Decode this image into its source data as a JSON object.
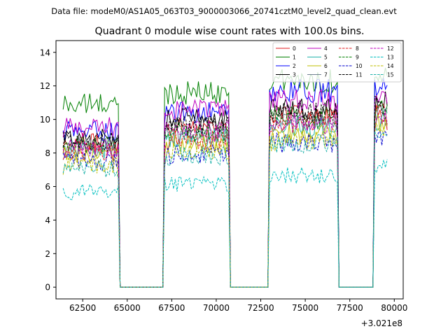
{
  "suptitle": "Data file: modeM0/AS1A05_063T03_9000003066_20741cztM0_level2_quad_clean.evt",
  "chart_data": {
    "type": "line",
    "title": "Quadrant 0 module wise count rates with 100.0s bins.",
    "xlabel": "",
    "ylabel": "",
    "offset_text": "+3.021e8",
    "xlim": [
      61000,
      80500
    ],
    "ylim": [
      -0.7,
      14.7
    ],
    "xticks": [
      62500,
      65000,
      67500,
      70000,
      72500,
      75000,
      77500,
      80000
    ],
    "xtick_labels": [
      "62500",
      "65000",
      "67500",
      "70000",
      "72500",
      "75000",
      "77500",
      "80000"
    ],
    "yticks": [
      0,
      2,
      4,
      6,
      8,
      10,
      12,
      14
    ],
    "ytick_labels": [
      "0",
      "2",
      "4",
      "6",
      "8",
      "10",
      "12",
      "14"
    ],
    "segments": [
      {
        "start": 61400,
        "end": 64500,
        "zero_until": 67100
      },
      {
        "start": 67100,
        "end": 70700,
        "zero_until": 73000
      },
      {
        "start": 73000,
        "end": 76800,
        "zero_until": 78900
      },
      {
        "start": 78900,
        "end": 79600,
        "zero_until": null
      }
    ],
    "series": [
      {
        "name": "0",
        "color": "#e31a1c",
        "dashed": false,
        "levels": [
          8.6,
          9.6,
          10.3,
          10.4
        ]
      },
      {
        "name": "1",
        "color": "#008000",
        "dashed": false,
        "levels": [
          10.9,
          11.6,
          12.3,
          12.6
        ]
      },
      {
        "name": "2",
        "color": "#0000ff",
        "dashed": false,
        "levels": [
          9.3,
          10.4,
          11.7,
          12.0
        ]
      },
      {
        "name": "3",
        "color": "#000000",
        "dashed": false,
        "levels": [
          8.9,
          10.1,
          10.6,
          11.1
        ]
      },
      {
        "name": "4",
        "color": "#bf00bf",
        "dashed": false,
        "levels": [
          9.5,
          10.6,
          11.1,
          11.6
        ]
      },
      {
        "name": "5",
        "color": "#20b2aa",
        "dashed": false,
        "levels": [
          8.2,
          8.9,
          9.6,
          10.0
        ]
      },
      {
        "name": "6",
        "color": "#bfbf00",
        "dashed": false,
        "levels": [
          7.9,
          8.5,
          9.1,
          9.7
        ]
      },
      {
        "name": "7",
        "color": "#708090",
        "dashed": false,
        "levels": [
          8.4,
          9.1,
          9.9,
          10.2
        ]
      },
      {
        "name": "8",
        "color": "#e31a1c",
        "dashed": true,
        "levels": [
          8.1,
          8.8,
          9.9,
          10.3
        ]
      },
      {
        "name": "9",
        "color": "#008000",
        "dashed": true,
        "levels": [
          8.5,
          9.2,
          10.1,
          10.5
        ]
      },
      {
        "name": "10",
        "color": "#0000cd",
        "dashed": true,
        "levels": [
          7.5,
          7.9,
          8.6,
          9.0
        ]
      },
      {
        "name": "11",
        "color": "#000000",
        "dashed": true,
        "levels": [
          8.7,
          9.6,
          10.4,
          10.9
        ]
      },
      {
        "name": "12",
        "color": "#bf00bf",
        "dashed": true,
        "levels": [
          8.3,
          9.3,
          9.8,
          10.1
        ]
      },
      {
        "name": "13",
        "color": "#00bfbf",
        "dashed": true,
        "levels": [
          5.7,
          6.2,
          6.7,
          7.3
        ]
      },
      {
        "name": "14",
        "color": "#bfbf00",
        "dashed": true,
        "levels": [
          7.3,
          8.1,
          8.7,
          9.5
        ]
      },
      {
        "name": "15",
        "color": "#20b2aa",
        "dashed": true,
        "levels": [
          7.1,
          7.8,
          8.6,
          9.2
        ]
      }
    ]
  }
}
